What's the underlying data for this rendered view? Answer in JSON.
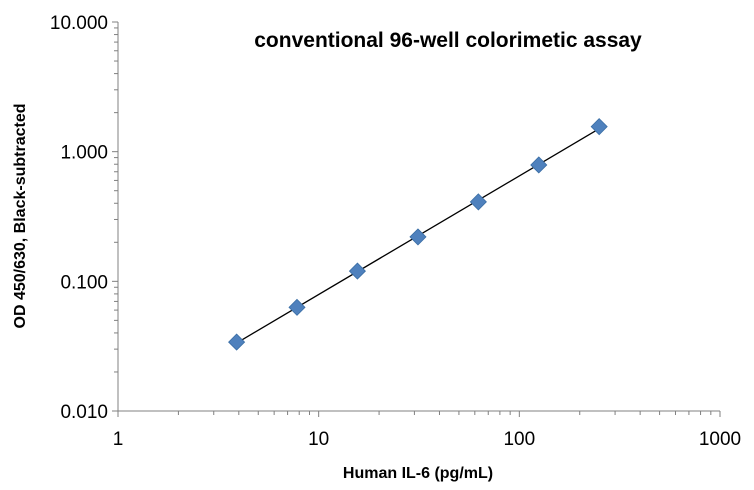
{
  "chart_data": {
    "type": "scatter",
    "title": "conventional 96-well colorimetic assay",
    "xlabel": "Human IL-6 (pg/mL)",
    "ylabel": "OD 450/630, Black-subtracted",
    "x_scale": "log",
    "y_scale": "log",
    "xlim": [
      1,
      1000
    ],
    "ylim": [
      0.01,
      10
    ],
    "x_ticks": [
      "1",
      "10",
      "100",
      "1000"
    ],
    "y_ticks": [
      "10.000",
      "1.000",
      "0.100",
      "0.010"
    ],
    "grid": false,
    "legend": "none",
    "marker": "diamond",
    "marker_color": "#4f81bd",
    "trendline": {
      "type": "power",
      "color": "#000000",
      "x_range": [
        3.9,
        250
      ]
    },
    "series": [
      {
        "x": [
          3.9,
          7.8,
          15.6,
          31.25,
          62.5,
          125,
          250
        ],
        "y": [
          0.034,
          0.063,
          0.12,
          0.22,
          0.41,
          0.79,
          1.56
        ]
      }
    ]
  }
}
